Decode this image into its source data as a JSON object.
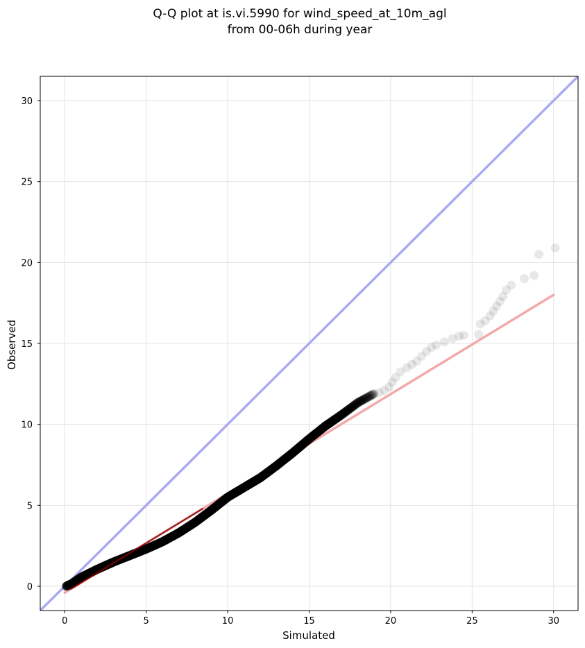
{
  "chart_data": {
    "type": "scatter",
    "title_lines": [
      "Q-Q plot at is.vi.5990 for wind_speed_at_10m_agl",
      "from 00-06h during year"
    ],
    "xlabel": "Simulated",
    "ylabel": "Observed",
    "xlim": [
      -1.5,
      31.5
    ],
    "ylim": [
      -1.5,
      31.5
    ],
    "xticks": [
      0,
      5,
      10,
      15,
      20,
      25,
      30
    ],
    "yticks": [
      0,
      5,
      10,
      15,
      20,
      25,
      30
    ],
    "grid": true,
    "colors": {
      "points": "#000000",
      "identity_line": "#aaaaf2",
      "fit_line": "#f4a9a9",
      "dense_fit": "#8b0000"
    },
    "reference_lines": [
      {
        "role": "identity",
        "x": [
          -1.5,
          31.5
        ],
        "y": [
          -1.5,
          31.5
        ]
      },
      {
        "role": "fit",
        "x": [
          0,
          30
        ],
        "y": [
          -0.4,
          18.0
        ]
      }
    ],
    "quantile_curve": [
      [
        0.1,
        0.0
      ],
      [
        0.5,
        0.2
      ],
      [
        1.0,
        0.55
      ],
      [
        2.0,
        1.05
      ],
      [
        3.0,
        1.5
      ],
      [
        4.0,
        1.9
      ],
      [
        5.0,
        2.3
      ],
      [
        6.0,
        2.75
      ],
      [
        7.0,
        3.3
      ],
      [
        8.0,
        3.95
      ],
      [
        9.0,
        4.7
      ],
      [
        10.0,
        5.5
      ],
      [
        11.0,
        6.1
      ],
      [
        12.0,
        6.7
      ],
      [
        13.0,
        7.45
      ],
      [
        14.0,
        8.25
      ],
      [
        15.0,
        9.1
      ],
      [
        16.0,
        9.9
      ],
      [
        17.0,
        10.6
      ],
      [
        18.0,
        11.35
      ],
      [
        19.0,
        11.9
      ]
    ],
    "tail_points": [
      [
        19.3,
        11.95
      ],
      [
        19.6,
        12.1
      ],
      [
        19.9,
        12.3
      ],
      [
        20.1,
        12.6
      ],
      [
        20.3,
        12.9
      ],
      [
        20.6,
        13.25
      ],
      [
        21.0,
        13.5
      ],
      [
        21.3,
        13.7
      ],
      [
        21.6,
        13.9
      ],
      [
        21.9,
        14.2
      ],
      [
        22.2,
        14.5
      ],
      [
        22.5,
        14.75
      ],
      [
        22.8,
        14.9
      ],
      [
        23.3,
        15.1
      ],
      [
        23.8,
        15.3
      ],
      [
        24.2,
        15.45
      ],
      [
        24.5,
        15.5
      ],
      [
        25.4,
        15.55
      ],
      [
        25.5,
        16.2
      ],
      [
        25.8,
        16.4
      ],
      [
        26.1,
        16.7
      ],
      [
        26.3,
        17.0
      ],
      [
        26.5,
        17.3
      ],
      [
        26.7,
        17.6
      ],
      [
        26.9,
        17.9
      ],
      [
        27.1,
        18.3
      ],
      [
        27.4,
        18.6
      ],
      [
        28.2,
        19.0
      ],
      [
        28.8,
        19.2
      ],
      [
        29.1,
        20.5
      ],
      [
        30.1,
        20.9
      ]
    ]
  }
}
